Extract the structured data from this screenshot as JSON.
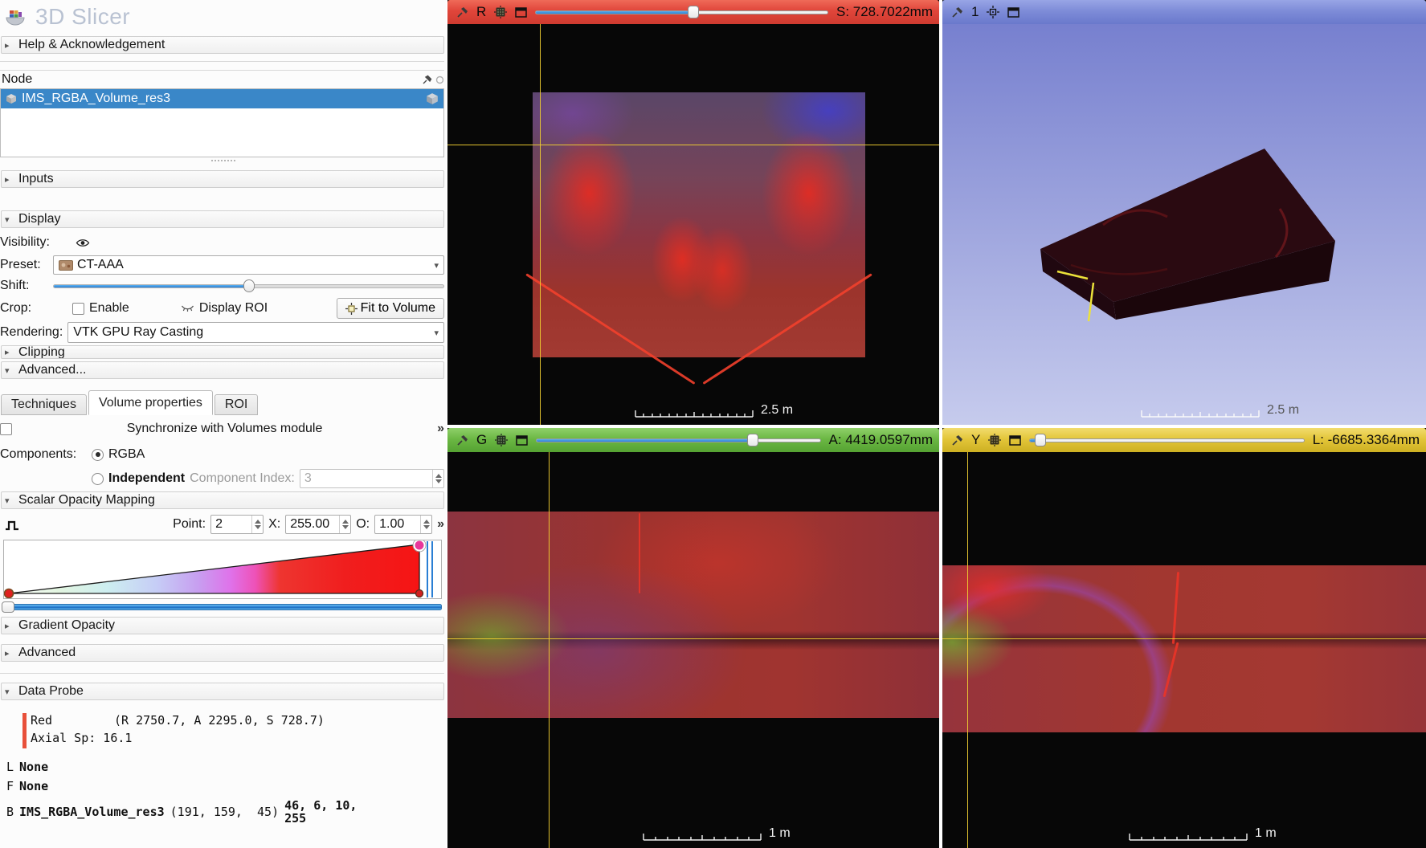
{
  "app": {
    "title": "3D Slicer"
  },
  "panel": {
    "help_section": "Help & Acknowledgement",
    "node": {
      "label": "Node",
      "selected": "IMS_RGBA_Volume_res3"
    },
    "inputs_section": "Inputs",
    "display_section": "Display",
    "display": {
      "visibility_label": "Visibility:",
      "preset_label": "Preset:",
      "preset_value": "CT-AAA",
      "shift_label": "Shift:",
      "shift_pct": 50,
      "crop_label": "Crop:",
      "enable_label": "Enable",
      "display_roi_label": "Display ROI",
      "fit_to_volume_label": "Fit to Volume",
      "rendering_label": "Rendering:",
      "rendering_value": "VTK GPU Ray Casting"
    },
    "clipping_section": "Clipping",
    "advanced_section": "Advanced...",
    "tabs": {
      "techniques": "Techniques",
      "volume_properties": "Volume properties",
      "roi": "ROI"
    },
    "sync_label": "Synchronize with Volumes module",
    "more_symbol": "»",
    "components": {
      "label": "Components:",
      "rgba_label": "RGBA",
      "independent_label": "Independent",
      "index_label": "Component Index:",
      "index_value": "3"
    },
    "scalar_opacity": {
      "section": "Scalar Opacity Mapping",
      "point_label": "Point:",
      "point_value": "2",
      "x_label": "X:",
      "x_value": "255.00",
      "o_label": "O:",
      "o_value": "1.00",
      "range_pct": 1
    },
    "gradient_opacity_section": "Gradient Opacity",
    "advanced2_section": "Advanced",
    "data_probe": {
      "section": "Data Probe",
      "red_name": "Red",
      "red_coords": "(R 2750.7, A 2295.0, S 728.7)",
      "axial": "Axial Sp: 16.1",
      "l_prefix": "L",
      "l_value": "None",
      "f_prefix": "F",
      "f_value": "None",
      "b_prefix": "B",
      "b_name": "IMS_RGBA_Volume_res3",
      "b_coords": "(191, 159,  45)",
      "b_line1": "46, 6, 10,",
      "b_line2": "255"
    }
  },
  "views": {
    "red": {
      "letter": "R",
      "readout": "S: 728.7022mm",
      "scalebar": "2.5 m",
      "slider_pct": 54
    },
    "three_d": {
      "label": "1",
      "scalebar": "2.5 m"
    },
    "green": {
      "letter": "G",
      "readout": "A: 4419.0597mm",
      "scalebar": "1 m",
      "slider_pct": 76
    },
    "yellow": {
      "letter": "Y",
      "readout": "L: -6685.3364mm",
      "scalebar": "1 m",
      "slider_pct": 4
    }
  },
  "colors": {
    "red_header": "#e0453a",
    "green_header": "#6cb844",
    "yellow_header": "#e3c63a",
    "blue_header": "#7e8cd8",
    "selection": "#3a87c8",
    "probe_marker": "#e8503a",
    "slider_fill": "#3f97dd"
  }
}
